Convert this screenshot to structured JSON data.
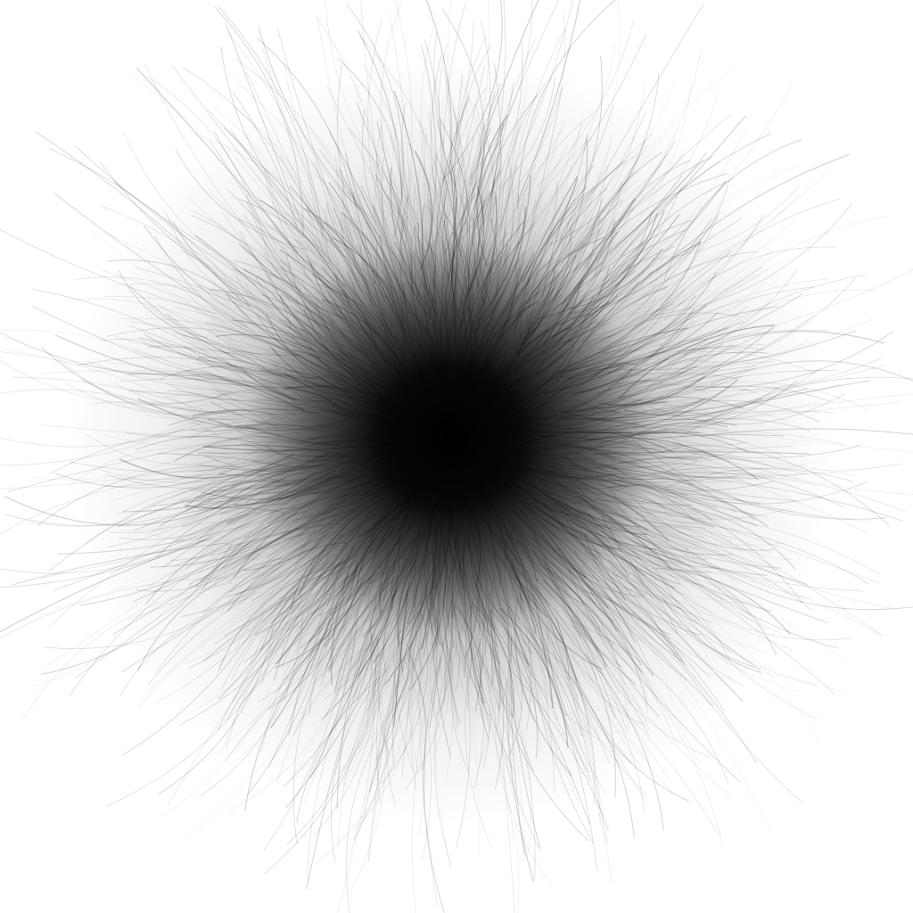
{
  "image": {
    "subject": "fur-ball",
    "colors": {
      "background": "#ffffff",
      "core": "#000000",
      "strand": "#2a2a2a"
    }
  }
}
